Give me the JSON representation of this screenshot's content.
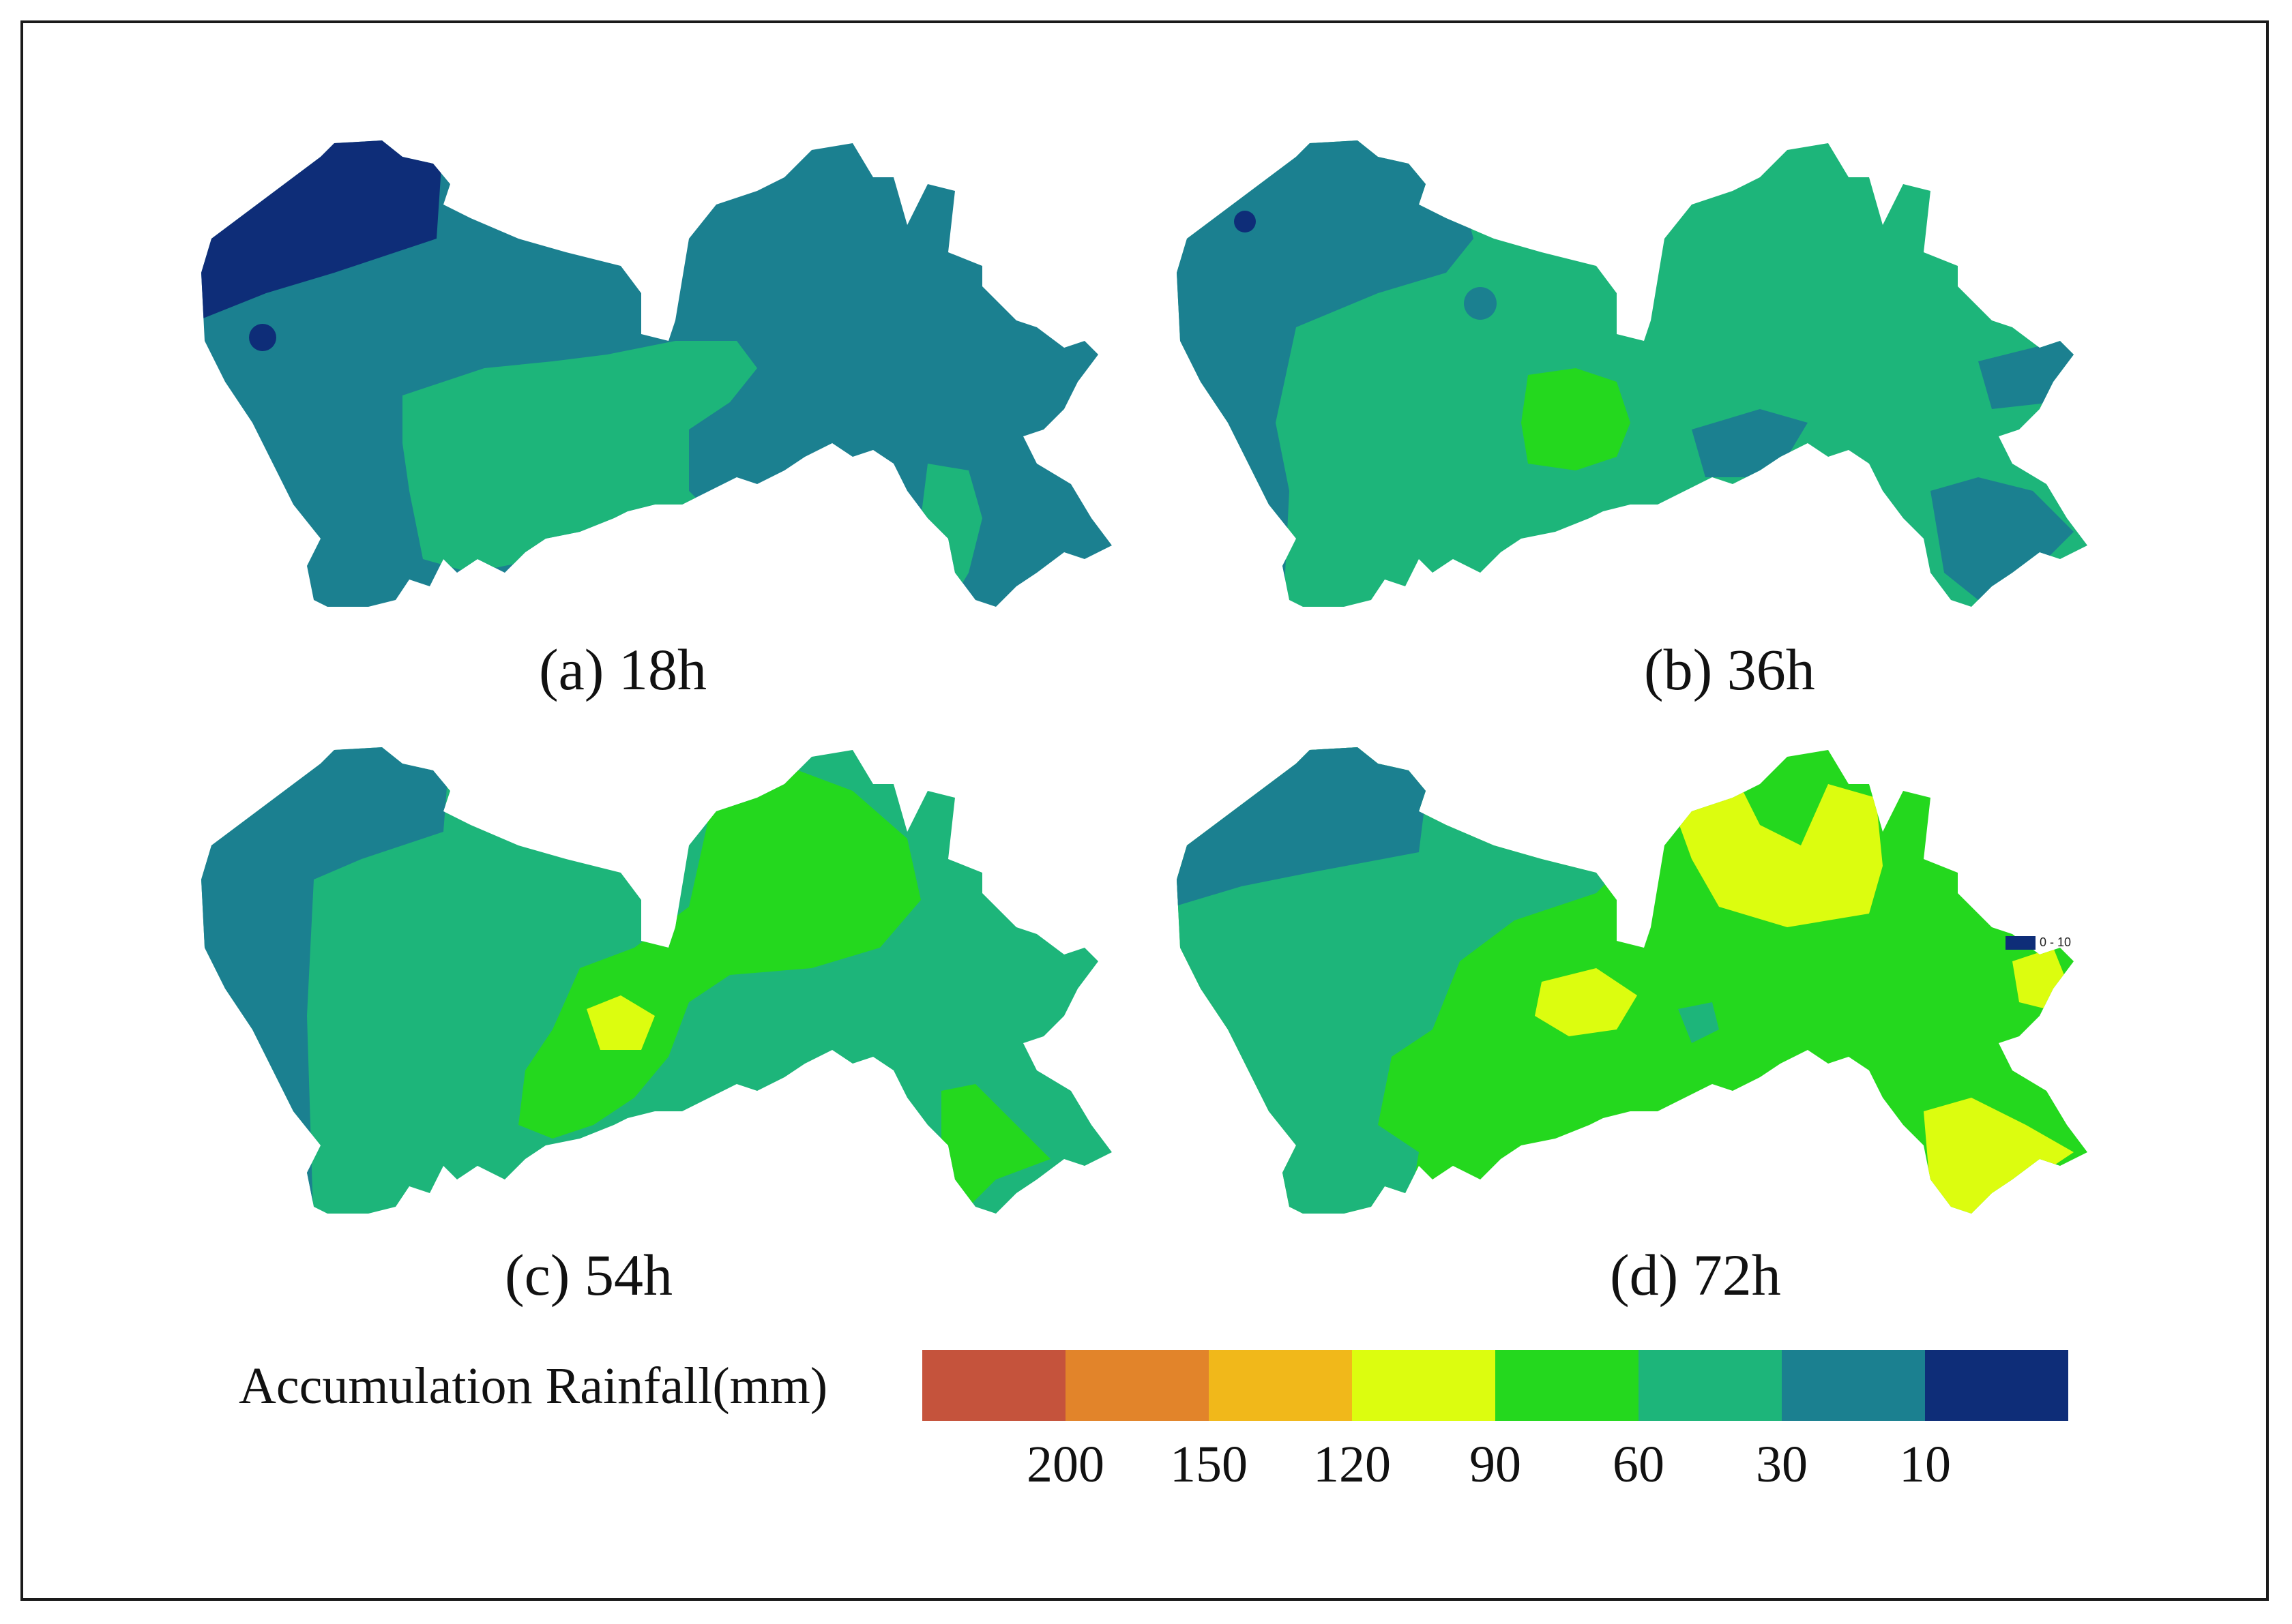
{
  "panels": [
    {
      "caption": "(a) 18h"
    },
    {
      "caption": "(b) 36h"
    },
    {
      "caption": "(c) 54h"
    },
    {
      "caption": "(d) 72h"
    }
  ],
  "legend": {
    "title": "Accumulation Rainfall(mm)",
    "ticks": [
      "200",
      "150",
      "120",
      "90",
      "60",
      "30",
      "10"
    ],
    "colors": [
      "#c5533c",
      "#e2842a",
      "#f1b81a",
      "#dcfd0f",
      "#24d81e",
      "#1db57a",
      "#1b8090",
      "#0e2d78"
    ]
  },
  "inset_legend": {
    "label": "0 - 10",
    "color": "#0e2d78"
  },
  "palette": {
    "dark_blue": "#0e2d78",
    "teal_blue": "#1b8090",
    "sea_green": "#1db57a",
    "bright_green": "#24d81e",
    "yellow_green": "#dcfd0f"
  }
}
